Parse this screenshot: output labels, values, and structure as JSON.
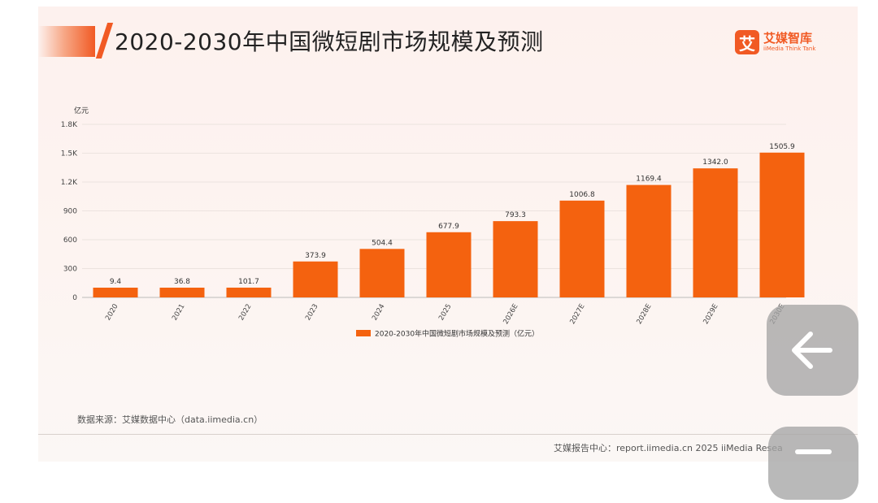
{
  "header": {
    "title": "2020-2030年中国微短剧市场规模及预测",
    "logo_mark": "艾",
    "logo_cn": "艾媒智库",
    "logo_en": "iiMedia Think Tank"
  },
  "chart_data": {
    "type": "bar",
    "title": "2020-2030年中国微短剧市场规模及预测",
    "ylabel": "亿元",
    "xlabel": "",
    "categories": [
      "2020",
      "2021",
      "2022",
      "2023",
      "2024",
      "2025",
      "2026E",
      "2027E",
      "2028E",
      "2029E",
      "2030E"
    ],
    "series": [
      {
        "name": "2020-2030年中国微短剧市场规模及预测（亿元）",
        "values": [
          9.4,
          36.8,
          101.7,
          373.9,
          504.4,
          677.9,
          793.3,
          1006.8,
          1169.4,
          1342.0,
          1505.9
        ],
        "value_labels": [
          "9.4",
          "36.8",
          "101.7",
          "373.9",
          "504.4",
          "677.9",
          "793.3",
          "1006.8",
          "1169.4",
          "1342.0",
          "1505.9"
        ],
        "color": "#f4620f"
      }
    ],
    "ylim": [
      0,
      1800
    ],
    "yticks": [
      0,
      300,
      600,
      900,
      1200,
      1500,
      1800
    ],
    "ytick_labels": [
      "0",
      "300",
      "600",
      "900",
      "1.2K",
      "1.5K",
      "1.8K"
    ],
    "grid": true,
    "legend_position": "bottom-center"
  },
  "footer": {
    "source": "数据来源：艾媒数据中心（data.iimedia.cn）",
    "right": "艾媒报告中心：report.iimedia.cn  2025 iiMedia Resea"
  },
  "overlay": {
    "back_icon": "arrow-left-icon",
    "second_icon": "minus-icon"
  }
}
